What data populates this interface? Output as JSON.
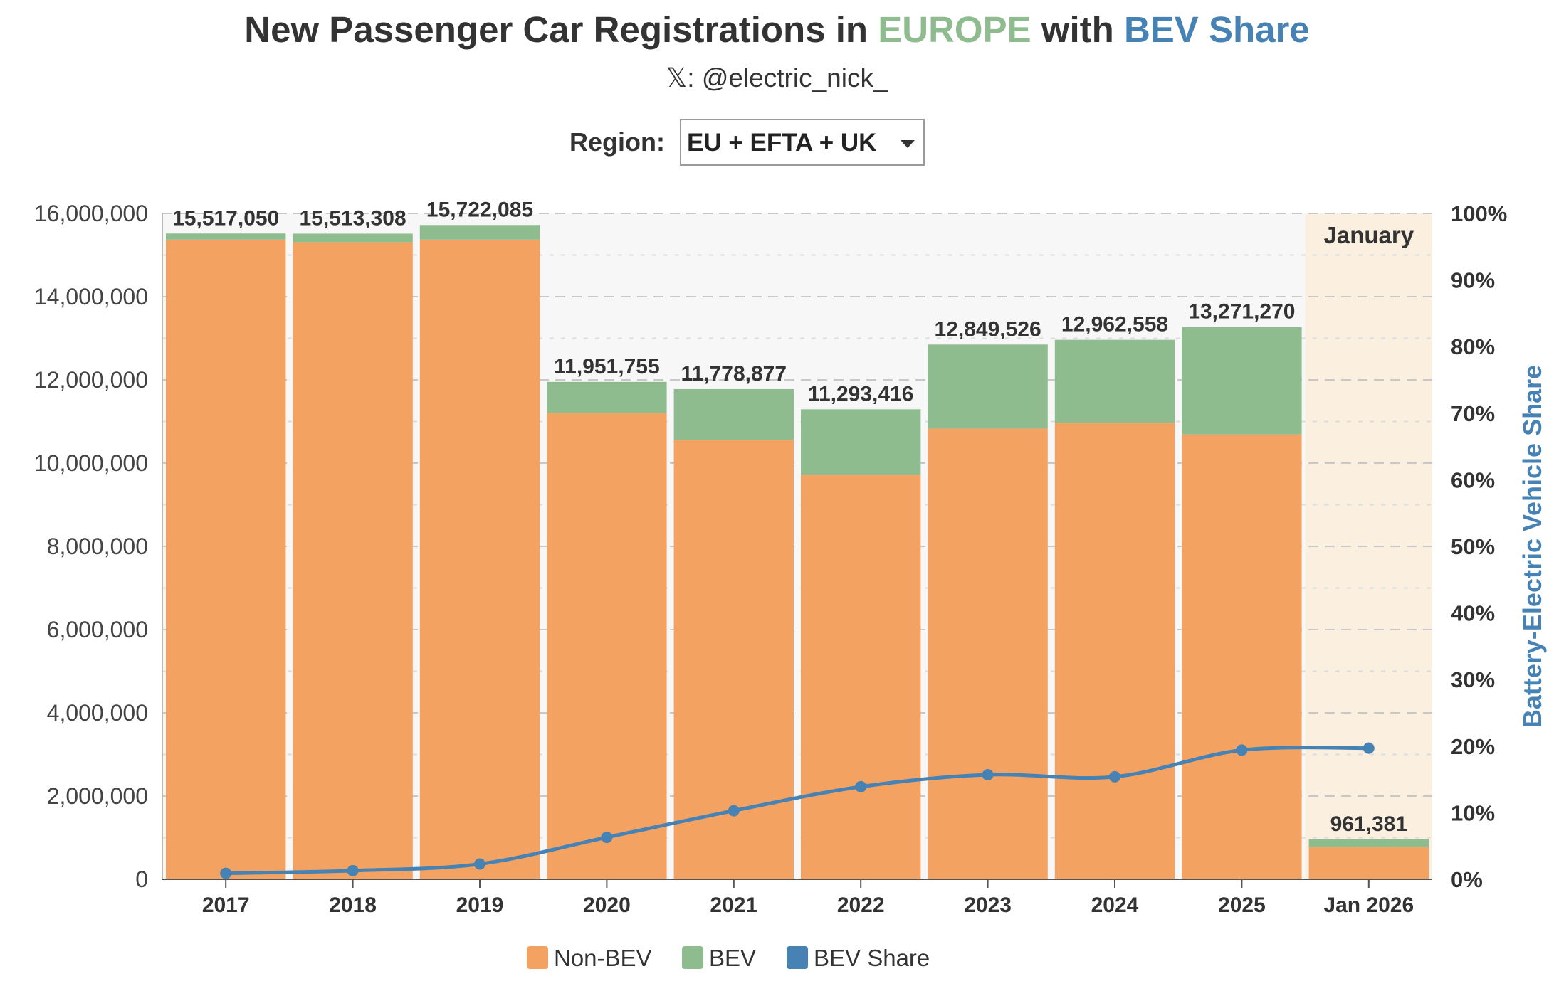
{
  "title": {
    "prefix": "New Passenger Car Registrations in ",
    "region_word": "EUROPE",
    "middle": " with ",
    "share_word": "BEV Share"
  },
  "subtitle": "𝕏: @electric_nick_",
  "region_filter": {
    "label": "Region:",
    "value": "EU + EFTA + UK"
  },
  "colors": {
    "non_bev": "#f4a261",
    "bev": "#8fbc8f",
    "bev_share": "#4682b4",
    "title_europe": "#8fbc8f",
    "title_bev_share": "#4682b4",
    "highlight": "#fbf0e0",
    "plot_background": "#f7f7f7"
  },
  "chart_data": {
    "type": "bar",
    "stacked": true,
    "categories": [
      "2017",
      "2018",
      "2019",
      "2020",
      "2021",
      "2022",
      "2023",
      "2024",
      "2025",
      "Jan 2026"
    ],
    "series": [
      {
        "name": "Non-BEV",
        "values": [
          15370000,
          15310000,
          15370000,
          11200000,
          10560000,
          9720000,
          10830000,
          10970000,
          10690000,
          772000
        ]
      },
      {
        "name": "BEV",
        "values": [
          147050,
          203308,
          352085,
          751755,
          1218877,
          1573416,
          2019526,
          1992558,
          2581270,
          189381
        ]
      }
    ],
    "line_series": {
      "name": "BEV Share",
      "axis": "right",
      "unit": "%",
      "values": [
        0.9,
        1.3,
        2.3,
        6.3,
        10.3,
        13.9,
        15.7,
        15.4,
        19.4,
        19.7
      ]
    },
    "totals": [
      "15,517,050",
      "15,513,308",
      "15,722,085",
      "11,951,755",
      "11,778,877",
      "11,293,416",
      "12,849,526",
      "12,962,558",
      "13,271,270",
      "961,381"
    ],
    "y_left": {
      "min": 0,
      "max": 16000000,
      "ticks": [
        "0",
        "2,000,000",
        "4,000,000",
        "6,000,000",
        "8,000,000",
        "10,000,000",
        "12,000,000",
        "14,000,000",
        "16,000,000"
      ]
    },
    "y_right": {
      "label": "Battery-Electric Vehicle Share",
      "min": 0,
      "max": 100,
      "ticks": [
        "0%",
        "10%",
        "20%",
        "30%",
        "40%",
        "50%",
        "60%",
        "70%",
        "80%",
        "90%",
        "100%"
      ]
    },
    "highlight": {
      "category": "Jan 2026",
      "label": "January"
    },
    "grid": true,
    "legend": {
      "position": "bottom",
      "entries": [
        "Non-BEV",
        "BEV",
        "BEV Share"
      ]
    }
  }
}
